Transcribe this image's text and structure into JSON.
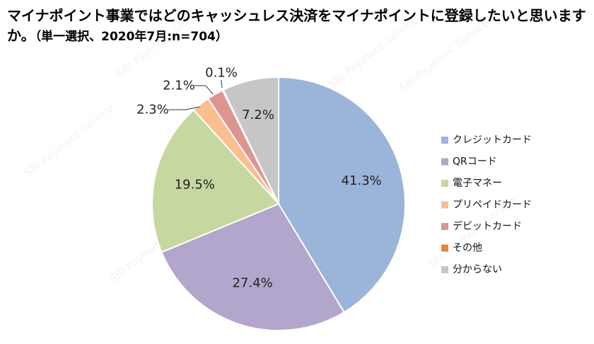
{
  "title": {
    "main": "マイナポイント事業ではどのキャッシュレス決済をマイナポイントに登録したいと思いますか。",
    "sub": "（単一選択、2020年7月:n=704）"
  },
  "watermark": "SBI Payment Service",
  "chart_data": {
    "type": "pie",
    "title": "マイナポイント事業ではどのキャッシュレス決済をマイナポイントに登録したいと思いますか。（単一選択、2020年7月:n=704）",
    "start_angle": "12 o'clock",
    "direction": "clockwise",
    "legend_position": "right",
    "slices": [
      {
        "label": "クレジットカード",
        "value": 41.3,
        "display": "41.3%",
        "color": "#9bb4d9",
        "label_placement": "inside"
      },
      {
        "label": "QRコード",
        "value": 27.4,
        "display": "27.4%",
        "color": "#b2a6cc",
        "label_placement": "inside"
      },
      {
        "label": "電子マネー",
        "value": 19.5,
        "display": "19.5%",
        "color": "#c6d89f",
        "label_placement": "inside"
      },
      {
        "label": "プリペイドカード",
        "value": 2.3,
        "display": "2.3%",
        "color": "#f9bf8f",
        "label_placement": "outside"
      },
      {
        "label": "デビットカード",
        "value": 2.1,
        "display": "2.1%",
        "color": "#dc9593",
        "label_placement": "outside"
      },
      {
        "label": "その他",
        "value": 0.1,
        "display": "0.1%",
        "color": "#e0873f",
        "label_placement": "outside"
      },
      {
        "label": "分からない",
        "value": 7.2,
        "display": "7.2%",
        "color": "#c6c6c6",
        "label_placement": "inside"
      }
    ]
  }
}
